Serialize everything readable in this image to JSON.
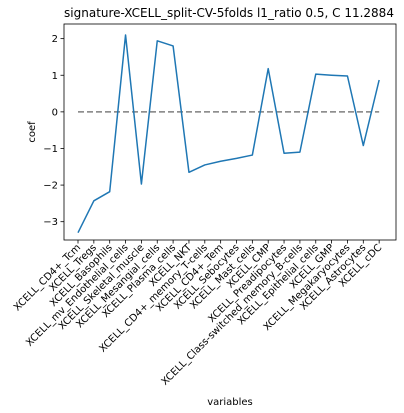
{
  "chart_data": {
    "type": "line",
    "title": "signature-XCELL_split-CV-5folds l1_ratio 0.5, C 11.2884",
    "xlabel": "variables",
    "ylabel": "coef",
    "ylim": [
      -3.5,
      2.4
    ],
    "yticks": [
      -3,
      -2,
      -1,
      0,
      1,
      2
    ],
    "grid": false,
    "categories": [
      "XCELL_CD4+_Tcm",
      "XCELL_Tregs",
      "XCELL_Basophils",
      "XCELL_mv_Endothelial_cells",
      "XCELL_Skeletal_muscle",
      "XCELL_Mesangial_cells",
      "XCELL_Plasma_cells",
      "XCELL_NKT",
      "XCELL_CD4+_memory_T-cells",
      "XCELL_CD4+_Tem",
      "XCELL_Sebocytes",
      "XCELL_Mast_cells",
      "XCELL_CMP",
      "XCELL_Preadipocytes",
      "XCELL_Class-switched_memory_B-cells",
      "XCELL_Epithelial_cells",
      "XCELL_GMP",
      "XCELL_Megakaryocytes",
      "XCELL_Astrocytes",
      "XCELL_cDC"
    ],
    "series": [
      {
        "values": [
          -3.3,
          -2.43,
          -2.18,
          2.1,
          -1.97,
          1.94,
          1.8,
          -1.65,
          -1.45,
          -1.35,
          -1.27,
          -1.18,
          1.18,
          -1.13,
          -1.1,
          1.03,
          1.0,
          0.98,
          -0.92,
          0.87
        ],
        "color": "#1f77b4"
      }
    ],
    "reference_line": {
      "y": 0,
      "style": "dashed",
      "color": "#7f7f7f"
    }
  }
}
